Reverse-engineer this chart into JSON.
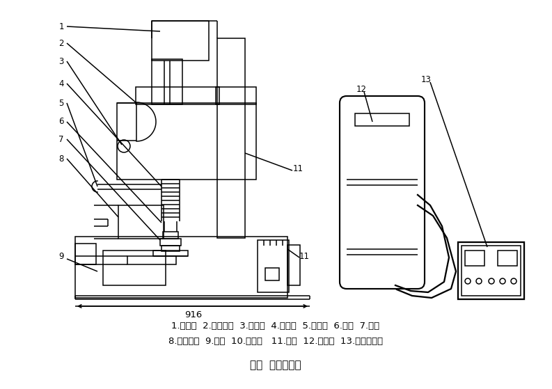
{
  "title": "图二  外形结构图",
  "caption_line1": "1.配重块  2.提升手柄  3.齿轮箱  4.伸缩套  5.收尘管  6.主轴  7.磨头",
  "caption_line2": "8.夹紧装置  9.机座  10.电动机   11.立柱  12.收尘器  13.电器控制箱",
  "bg_color": "#ffffff",
  "line_color": "#000000",
  "dimension_text": "916"
}
